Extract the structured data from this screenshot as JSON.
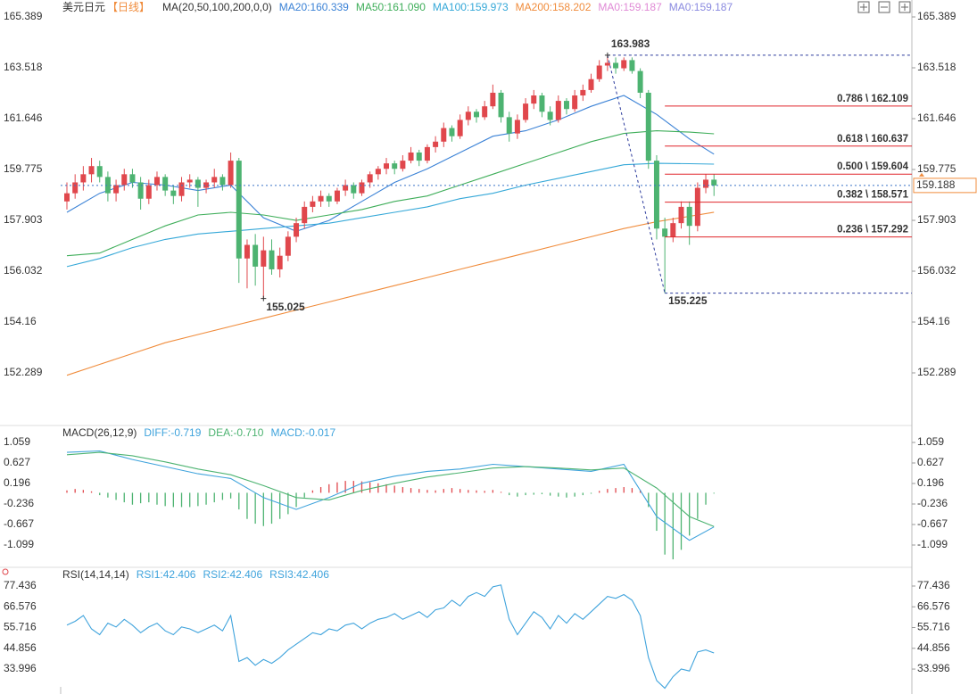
{
  "chart_data": [
    {
      "type": "candlestick",
      "title": "美元日元",
      "period": "【日线】",
      "period_color": "#f08c3c",
      "ma_label": "MA(20,50,100,200,0,0)",
      "up_color": "#e0474c",
      "down_color": "#4db371",
      "ylim": [
        150.418,
        165.849
      ],
      "yticks": [
        165.389,
        163.518,
        161.646,
        159.775,
        157.903,
        156.032,
        154.16,
        152.289
      ],
      "ohlc": [
        [
          158.6,
          159.3,
          158.3,
          158.9
        ],
        [
          158.9,
          159.6,
          158.7,
          159.3
        ],
        [
          159.3,
          159.9,
          159.0,
          159.6
        ],
        [
          159.6,
          160.2,
          159.3,
          159.9
        ],
        [
          159.9,
          160.1,
          159.3,
          159.5
        ],
        [
          159.5,
          159.7,
          158.6,
          158.9
        ],
        [
          158.9,
          159.4,
          158.6,
          159.2
        ],
        [
          159.2,
          159.8,
          159.0,
          159.6
        ],
        [
          159.6,
          159.8,
          159.1,
          159.3
        ],
        [
          159.3,
          159.5,
          158.3,
          158.7
        ],
        [
          158.7,
          159.4,
          158.5,
          159.2
        ],
        [
          159.2,
          159.7,
          159.0,
          159.5
        ],
        [
          159.5,
          159.6,
          158.8,
          159.0
        ],
        [
          159.0,
          159.2,
          158.5,
          158.8
        ],
        [
          158.8,
          159.5,
          158.6,
          159.3
        ],
        [
          159.3,
          159.6,
          159.1,
          159.4
        ],
        [
          159.4,
          159.5,
          158.4,
          159.1
        ],
        [
          159.1,
          159.4,
          158.9,
          159.3
        ],
        [
          159.3,
          159.8,
          159.1,
          159.5
        ],
        [
          159.5,
          159.6,
          159.0,
          159.2
        ],
        [
          159.2,
          160.4,
          159.1,
          160.1
        ],
        [
          160.1,
          160.2,
          155.6,
          156.5
        ],
        [
          156.5,
          157.2,
          155.4,
          157.0
        ],
        [
          157.0,
          157.4,
          155.5,
          156.2
        ],
        [
          156.2,
          157.3,
          155.025,
          156.8
        ],
        [
          156.8,
          157.2,
          155.9,
          156.1
        ],
        [
          156.1,
          156.9,
          155.8,
          156.6
        ],
        [
          156.6,
          157.5,
          156.4,
          157.3
        ],
        [
          157.3,
          158.0,
          157.1,
          157.8
        ],
        [
          157.8,
          158.6,
          157.6,
          158.4
        ],
        [
          158.4,
          158.8,
          158.2,
          158.6
        ],
        [
          158.6,
          159.0,
          158.4,
          158.8
        ],
        [
          158.8,
          158.9,
          158.4,
          158.6
        ],
        [
          158.6,
          159.1,
          158.5,
          159.0
        ],
        [
          159.0,
          159.4,
          158.8,
          159.2
        ],
        [
          159.2,
          159.3,
          158.7,
          158.9
        ],
        [
          158.9,
          159.4,
          158.8,
          159.3
        ],
        [
          159.3,
          159.7,
          159.1,
          159.6
        ],
        [
          159.6,
          159.9,
          159.4,
          159.8
        ],
        [
          159.8,
          160.2,
          159.6,
          160.0
        ],
        [
          160.0,
          160.1,
          159.6,
          159.8
        ],
        [
          159.8,
          160.3,
          159.7,
          160.1
        ],
        [
          160.1,
          160.6,
          160.0,
          160.4
        ],
        [
          160.4,
          160.5,
          159.9,
          160.1
        ],
        [
          160.1,
          160.7,
          160.0,
          160.6
        ],
        [
          160.6,
          161.0,
          160.4,
          160.8
        ],
        [
          160.8,
          161.5,
          160.6,
          161.3
        ],
        [
          161.3,
          161.4,
          160.8,
          161.0
        ],
        [
          161.0,
          161.8,
          160.9,
          161.6
        ],
        [
          161.6,
          162.1,
          161.4,
          161.9
        ],
        [
          161.9,
          162.0,
          161.5,
          161.7
        ],
        [
          161.7,
          162.3,
          161.6,
          162.1
        ],
        [
          162.1,
          162.9,
          162.0,
          162.6
        ],
        [
          162.6,
          162.7,
          161.5,
          161.7
        ],
        [
          161.7,
          161.9,
          160.8,
          161.1
        ],
        [
          161.1,
          161.8,
          160.9,
          161.6
        ],
        [
          161.6,
          162.4,
          161.5,
          162.2
        ],
        [
          162.2,
          162.7,
          162.0,
          162.5
        ],
        [
          162.5,
          162.6,
          161.7,
          161.9
        ],
        [
          161.9,
          162.1,
          161.4,
          161.6
        ],
        [
          161.6,
          162.5,
          161.5,
          162.3
        ],
        [
          162.3,
          162.4,
          161.8,
          162.0
        ],
        [
          162.0,
          162.7,
          161.9,
          162.5
        ],
        [
          162.5,
          162.9,
          162.3,
          162.7
        ],
        [
          162.7,
          163.3,
          162.6,
          163.1
        ],
        [
          163.1,
          163.8,
          163.0,
          163.6
        ],
        [
          163.6,
          163.983,
          163.4,
          163.7
        ],
        [
          163.7,
          163.9,
          163.3,
          163.5
        ],
        [
          163.5,
          163.9,
          163.4,
          163.8
        ],
        [
          163.8,
          163.9,
          163.3,
          163.4
        ],
        [
          163.4,
          163.5,
          162.4,
          162.6
        ],
        [
          162.6,
          162.7,
          159.8,
          160.1
        ],
        [
          160.1,
          160.3,
          157.2,
          157.6
        ],
        [
          157.6,
          158.0,
          155.225,
          157.3
        ],
        [
          157.3,
          158.0,
          157.1,
          157.8
        ],
        [
          157.8,
          158.6,
          157.6,
          158.4
        ],
        [
          158.4,
          158.6,
          157.0,
          157.7
        ],
        [
          157.7,
          159.3,
          157.5,
          159.1
        ],
        [
          159.1,
          159.6,
          158.9,
          159.4
        ],
        [
          159.4,
          159.6,
          158.8,
          159.188
        ]
      ],
      "series": [
        {
          "name": "MA20:160.339",
          "color": "#3b82d6",
          "x": [
            0,
            4,
            8,
            12,
            16,
            20,
            24,
            28,
            32,
            36,
            40,
            44,
            48,
            52,
            56,
            60,
            64,
            68,
            72,
            76,
            79
          ],
          "values": [
            158.2,
            158.9,
            159.3,
            159.2,
            159.0,
            159.2,
            158.0,
            157.5,
            157.9,
            158.6,
            159.3,
            159.8,
            160.4,
            161.0,
            161.2,
            161.6,
            162.1,
            162.5,
            161.8,
            160.9,
            160.339
          ]
        },
        {
          "name": "MA50:161.090",
          "color": "#3fae5a",
          "x": [
            0,
            4,
            8,
            12,
            16,
            20,
            24,
            28,
            32,
            36,
            40,
            44,
            48,
            52,
            56,
            60,
            64,
            68,
            72,
            76,
            79
          ],
          "values": [
            156.6,
            156.7,
            157.2,
            157.7,
            158.1,
            158.2,
            158.1,
            157.9,
            158.1,
            158.3,
            158.6,
            158.8,
            159.2,
            159.6,
            160.0,
            160.4,
            160.8,
            161.1,
            161.2,
            161.15,
            161.09
          ]
        },
        {
          "name": "MA100:159.973",
          "color": "#35a8d8",
          "x": [
            0,
            4,
            8,
            12,
            16,
            20,
            24,
            28,
            32,
            36,
            40,
            44,
            48,
            52,
            56,
            60,
            64,
            68,
            72,
            76,
            79
          ],
          "values": [
            156.2,
            156.5,
            156.9,
            157.2,
            157.4,
            157.5,
            157.6,
            157.7,
            157.8,
            158.0,
            158.2,
            158.4,
            158.7,
            158.9,
            159.2,
            159.45,
            159.7,
            159.95,
            160.0,
            159.99,
            159.973
          ]
        },
        {
          "name": "MA200:158.202",
          "color": "#f08c3c",
          "x": [
            0,
            4,
            8,
            12,
            16,
            20,
            24,
            28,
            32,
            36,
            40,
            44,
            48,
            52,
            56,
            60,
            64,
            68,
            72,
            76,
            79
          ],
          "values": [
            152.2,
            152.6,
            153.0,
            153.4,
            153.7,
            154.0,
            154.3,
            154.6,
            154.9,
            155.2,
            155.5,
            155.8,
            156.1,
            156.4,
            156.7,
            157.0,
            157.3,
            157.6,
            157.85,
            158.05,
            158.202
          ]
        }
      ],
      "extra_legend": [
        {
          "name": "MA0:159.187",
          "color": "#e08ad6"
        },
        {
          "name": "MA0:159.187",
          "color": "#8a8ae0"
        }
      ],
      "fib_color": "#e0242a",
      "fib_levels": [
        {
          "value": 162.109,
          "label": "0.786 \\ 162.109"
        },
        {
          "value": 160.637,
          "label": "0.618 \\ 160.637"
        },
        {
          "value": 159.604,
          "label": "0.500 \\ 159.604"
        },
        {
          "value": 158.571,
          "label": "0.382 \\ 158.571"
        },
        {
          "value": 157.292,
          "label": "0.236 \\ 157.292"
        }
      ],
      "price_color": "#f08c3c"
    },
    {
      "type": "macd",
      "title": "MACD(26,12,9)",
      "ylim": [
        -1.493,
        1.359
      ],
      "yticks": [
        1.059,
        0.627,
        0.196,
        -0.236,
        -0.667,
        -1.099
      ],
      "series": [
        {
          "name": "DIFF:-0.719",
          "color": "#3fa3dc",
          "x": [
            0,
            4,
            8,
            12,
            16,
            20,
            24,
            28,
            32,
            36,
            40,
            44,
            48,
            52,
            56,
            60,
            64,
            68,
            72,
            76,
            79
          ],
          "values": [
            0.85,
            0.88,
            0.7,
            0.55,
            0.4,
            0.3,
            -0.1,
            -0.35,
            -0.1,
            0.2,
            0.35,
            0.45,
            0.5,
            0.6,
            0.55,
            0.5,
            0.45,
            0.6,
            -0.5,
            -1.0,
            -0.719
          ]
        },
        {
          "name": "DEA:-0.710",
          "color": "#4db371",
          "x": [
            0,
            4,
            8,
            12,
            16,
            20,
            24,
            28,
            32,
            36,
            40,
            44,
            48,
            52,
            56,
            60,
            64,
            68,
            72,
            76,
            79
          ],
          "values": [
            0.8,
            0.85,
            0.78,
            0.65,
            0.5,
            0.38,
            0.15,
            -0.1,
            -0.15,
            0.05,
            0.2,
            0.33,
            0.42,
            0.52,
            0.55,
            0.52,
            0.48,
            0.52,
            0.1,
            -0.5,
            -0.71
          ]
        }
      ],
      "histogram": {
        "name": "MACD:-0.017",
        "color": "#3fa3dc",
        "up_color": "#e0474c",
        "down_color": "#4db371",
        "values": [
          0.05,
          0.08,
          0.06,
          0.03,
          -0.05,
          -0.1,
          -0.15,
          -0.2,
          -0.25,
          -0.22,
          -0.2,
          -0.25,
          -0.28,
          -0.3,
          -0.3,
          -0.3,
          -0.28,
          -0.25,
          -0.2,
          -0.15,
          -0.12,
          -0.35,
          -0.55,
          -0.65,
          -0.7,
          -0.65,
          -0.55,
          -0.45,
          -0.3,
          -0.1,
          0.05,
          0.12,
          0.18,
          0.22,
          0.25,
          0.25,
          0.24,
          0.22,
          0.2,
          0.18,
          0.15,
          0.12,
          0.1,
          0.08,
          0.06,
          0.05,
          0.08,
          0.1,
          0.08,
          0.06,
          0.05,
          0.04,
          0.06,
          0.02,
          -0.05,
          -0.08,
          -0.05,
          -0.04,
          -0.03,
          -0.06,
          -0.08,
          -0.1,
          -0.08,
          -0.05,
          -0.02,
          0.04,
          0.08,
          0.1,
          0.12,
          0.1,
          0.06,
          -0.3,
          -0.8,
          -1.3,
          -1.4,
          -1.2,
          -0.9,
          -0.55,
          -0.25,
          -0.017
        ]
      }
    },
    {
      "type": "rsi",
      "title": "RSI(14,14,14)",
      "ylim": [
        22.35,
        85.36
      ],
      "yticks": [
        77.436,
        66.576,
        55.716,
        44.856,
        33.996
      ],
      "series": [
        {
          "name": "RSI1:42.406",
          "color": "#3fa3dc",
          "values": [
            57,
            59,
            62,
            55,
            52,
            58,
            56,
            60,
            57,
            53,
            56,
            58,
            54,
            52,
            56,
            55,
            53,
            55,
            57,
            54,
            62,
            38,
            40,
            36,
            39,
            37,
            40,
            44,
            47,
            50,
            53,
            52,
            55,
            54,
            57,
            58,
            55,
            58,
            60,
            61,
            63,
            60,
            62,
            64,
            61,
            65,
            66,
            70,
            67,
            72,
            74,
            72,
            77,
            78,
            60,
            52,
            58,
            64,
            61,
            55,
            62,
            58,
            63,
            60,
            64,
            68,
            72,
            71,
            73,
            70,
            62,
            40,
            28,
            24,
            30,
            34,
            33,
            43,
            44,
            42.406
          ]
        }
      ],
      "extra_legend": [
        {
          "name": "RSI2:42.406",
          "color": "#3fa3dc"
        },
        {
          "name": "RSI3:42.406",
          "color": "#3fa3dc"
        }
      ]
    }
  ]
}
